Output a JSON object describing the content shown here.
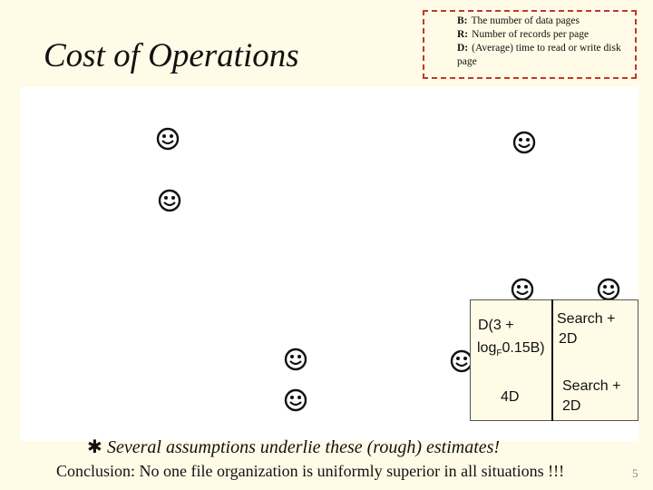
{
  "slide": {
    "title": "Cost of Operations",
    "legend": [
      {
        "key": "B:",
        "text": "The number of data pages"
      },
      {
        "key": "R:",
        "text": "Number of records per page"
      },
      {
        "key": "D:",
        "text": "(Average) time to read or write disk page"
      }
    ],
    "cells": {
      "c1a": "D(3 +",
      "c1b": "log",
      "c1b_sub": "F",
      "c1b_tail": "0.15B)",
      "c2": "Search +",
      "c2b": "2D",
      "c3": "4D",
      "c4": "Search +",
      "c4b": "2D"
    },
    "note_bullet": "✱",
    "note": "Several assumptions underlie these (rough) estimates!",
    "conclusion": "Conclusion: No one file organization is uniformly superior in all situations !!!",
    "page_number": "5",
    "colors": {
      "accent": "#c0392b",
      "background": "#fffbe6"
    }
  }
}
